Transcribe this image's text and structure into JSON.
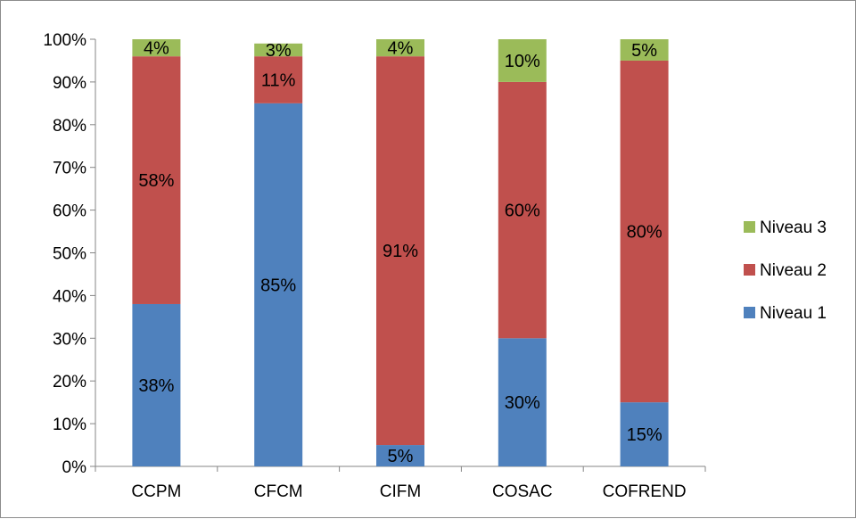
{
  "chart_data": {
    "type": "bar",
    "stacked": true,
    "percent_stacked": true,
    "categories": [
      "CCPM",
      "CFCM",
      "CIFM",
      "COSAC",
      "COFREND"
    ],
    "series": [
      {
        "name": "Niveau 1",
        "color": "#4f81bd",
        "values": [
          38,
          85,
          5,
          30,
          15
        ],
        "labels": [
          "38%",
          "85%",
          "5%",
          "30%",
          "15%"
        ]
      },
      {
        "name": "Niveau 2",
        "color": "#c0504d",
        "values": [
          58,
          11,
          91,
          60,
          80
        ],
        "labels": [
          "58%",
          "11%",
          "91%",
          "60%",
          "80%"
        ]
      },
      {
        "name": "Niveau 3",
        "color": "#9bbb59",
        "values": [
          4,
          3,
          4,
          10,
          5
        ],
        "labels": [
          "4%",
          "3%",
          "4%",
          "10%",
          "5%"
        ]
      }
    ],
    "yticks": [
      "0%",
      "10%",
      "20%",
      "30%",
      "40%",
      "50%",
      "60%",
      "70%",
      "80%",
      "90%",
      "100%"
    ],
    "ylim": [
      0,
      100
    ],
    "grid": false,
    "legend": {
      "placement": "right",
      "order": [
        "Niveau 3",
        "Niveau 2",
        "Niveau 1"
      ]
    }
  }
}
